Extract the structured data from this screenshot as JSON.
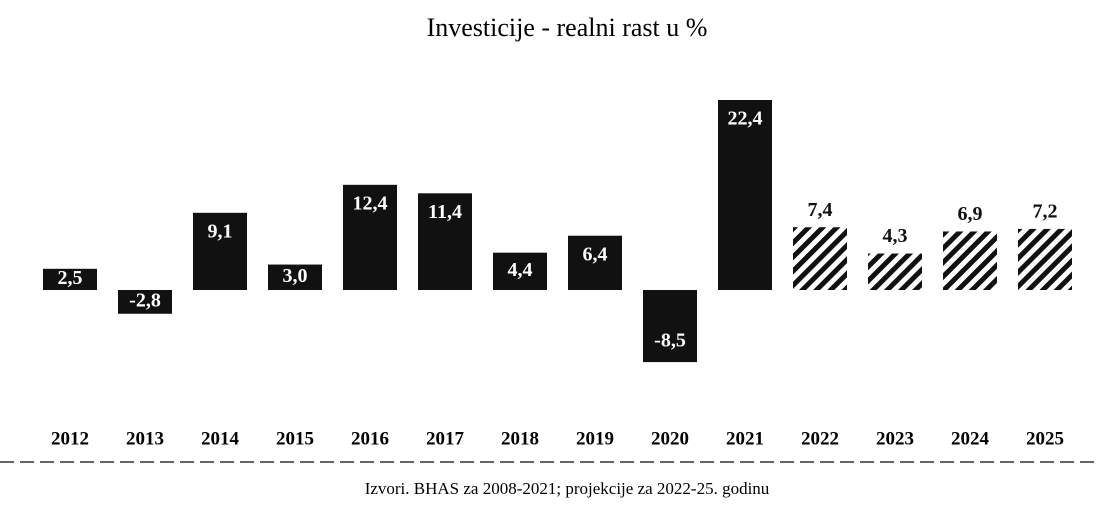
{
  "chart_data": {
    "type": "bar",
    "title": "Investicije - realni rast u %",
    "categories": [
      "2012",
      "2013",
      "2014",
      "2015",
      "2016",
      "2017",
      "2018",
      "2019",
      "2020",
      "2021",
      "2022",
      "2023",
      "2024",
      "2025"
    ],
    "values": [
      2.5,
      -2.8,
      9.1,
      3.0,
      12.4,
      11.4,
      4.4,
      6.4,
      -8.5,
      22.4,
      7.4,
      4.3,
      6.9,
      7.2
    ],
    "value_labels": [
      "2,5",
      "-2,8",
      "9,1",
      "3,0",
      "12,4",
      "11,4",
      "4,4",
      "6,4",
      "-8,5",
      "22,4",
      "7,4",
      "4,3",
      "6,9",
      "7,2"
    ],
    "fills": [
      "solid",
      "solid",
      "solid",
      "solid",
      "solid",
      "solid",
      "solid",
      "solid",
      "solid",
      "solid",
      "hatched",
      "hatched",
      "hatched",
      "hatched"
    ],
    "color": "#111111",
    "source": "Izvori. BHAS za 2008-2021; projekcije za 2022-25. godinu"
  }
}
